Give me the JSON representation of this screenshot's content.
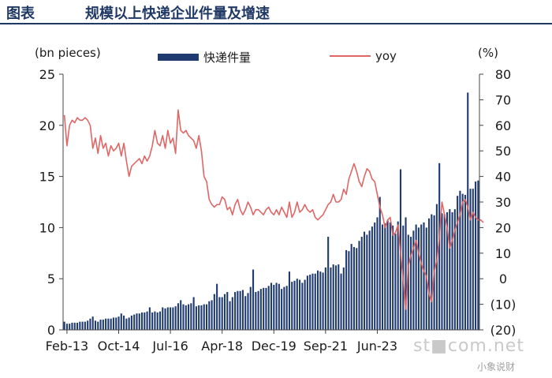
{
  "header": {
    "label": "图表",
    "title": "规模以上快递企业件量及增速"
  },
  "units": {
    "left": "(bn pieces)",
    "right": "(%)"
  },
  "legend": {
    "bar_label": "快递件量",
    "line_label": "yoy"
  },
  "watermark": {
    "main": "st■com.net",
    "sub": "小象说财"
  },
  "chart_data": {
    "type": "bar",
    "title": "",
    "xlabel": "",
    "x_tick_labels": [
      "Feb-13",
      "Oct-14",
      "Jul-16",
      "Apr-18",
      "Dec-19",
      "Sep-21",
      "Jun-23"
    ],
    "y_left": {
      "label": "(bn pieces)",
      "range": [
        0,
        25
      ],
      "ticks": [
        "0",
        "5",
        "10",
        "15",
        "20",
        "25"
      ]
    },
    "y_right": {
      "label": "(%)",
      "range": [
        -20,
        80
      ],
      "ticks": [
        "(20)",
        "(10)",
        "0",
        "10",
        "20",
        "30",
        "40",
        "50",
        "60",
        "70",
        "80"
      ]
    },
    "start_month": "2013-01",
    "colors": {
      "bar": "#1f3a6e",
      "line": "#e06666",
      "axis": "#444444"
    },
    "series": [
      {
        "name": "快递件量",
        "axis": "left",
        "type": "bar",
        "values": [
          0.8,
          0.6,
          0.6,
          0.7,
          0.7,
          0.7,
          0.8,
          0.8,
          0.8,
          0.9,
          1.1,
          1.3,
          0.9,
          0.8,
          1.0,
          1.0,
          1.1,
          1.1,
          1.1,
          1.2,
          1.2,
          1.3,
          1.6,
          1.4,
          1.1,
          1.2,
          1.4,
          1.5,
          1.6,
          1.6,
          1.7,
          1.7,
          1.8,
          2.2,
          1.7,
          1.8,
          1.7,
          1.8,
          2.2,
          2.1,
          2.2,
          2.2,
          2.2,
          2.3,
          2.6,
          2.9,
          2.5,
          2.4,
          2.5,
          2.6,
          3.2,
          2.3,
          2.4,
          2.4,
          2.5,
          2.5,
          2.8,
          2.9,
          3.5,
          4.5,
          3.2,
          3.2,
          3.5,
          3.7,
          2.8,
          3.2,
          3.7,
          3.8,
          3.8,
          3.9,
          3.3,
          3.6,
          4.2,
          5.9,
          3.7,
          3.8,
          4.0,
          4.1,
          4.1,
          4.3,
          4.6,
          4.4,
          4.6,
          4.5,
          4.0,
          4.2,
          4.3,
          5.7,
          4.7,
          4.8,
          5.0,
          4.9,
          4.6,
          4.9,
          5.3,
          5.4,
          5.5,
          5.5,
          5.8,
          5.7,
          5.6,
          6.1,
          9.1,
          6.1,
          6.4,
          6.3,
          6.4,
          5.5,
          6.1,
          7.8,
          7.7,
          8.4,
          8.1,
          8.0,
          8.7,
          9.1,
          9.6,
          9.3,
          9.7,
          10.1,
          10.5,
          11.0,
          13.0,
          10.3,
          10.4,
          10.7,
          10.5,
          10.2,
          9.4,
          10.6,
          15.7,
          10.2,
          11.0,
          9.3,
          9.1,
          9.7,
          10.3,
          10.0,
          10.3,
          10.5,
          10.0,
          10.9,
          11.3,
          11.2,
          12.3,
          16.3,
          11.4,
          11.3,
          11.5,
          11.8,
          11.5,
          11.8,
          13.1,
          13.6,
          13.3,
          13.2,
          23.2,
          13.8,
          13.8,
          14.5,
          14.6
        ]
      },
      {
        "name": "yoy",
        "axis": "right",
        "type": "line",
        "values": [
          64,
          52,
          60,
          62,
          61,
          63,
          62,
          62,
          63,
          62,
          60,
          51,
          55,
          49,
          56,
          51,
          53,
          48,
          52,
          50,
          51,
          53,
          48,
          53,
          46,
          40,
          44,
          45,
          46,
          47,
          45,
          48,
          46,
          48,
          52,
          58,
          53,
          52,
          56,
          51,
          58,
          53,
          55,
          49,
          66,
          58,
          57,
          58,
          56,
          55,
          54,
          51,
          56,
          50,
          40,
          38,
          31,
          29,
          28,
          29,
          29,
          32,
          31,
          27,
          28,
          25,
          29,
          31,
          27,
          25,
          27,
          30,
          28,
          25,
          27,
          27,
          26,
          25,
          27,
          28,
          26,
          25,
          27,
          25,
          28,
          26,
          24,
          30,
          24,
          26,
          30,
          26,
          27,
          29,
          27,
          26,
          27,
          24,
          23,
          24,
          25,
          27,
          29,
          30,
          33,
          30,
          30,
          31,
          35,
          33,
          39,
          42,
          45,
          42,
          38,
          36,
          40,
          43,
          42,
          39,
          38,
          33,
          28,
          25,
          20,
          23,
          24,
          17,
          18,
          21,
          10,
          0,
          -12,
          5,
          9,
          12,
          15,
          10,
          6,
          3,
          1,
          -6,
          -9,
          3,
          7,
          16,
          30,
          25,
          20,
          12,
          15,
          19,
          22,
          25,
          30,
          31,
          28,
          23,
          26,
          24,
          23,
          23,
          22
        ]
      }
    ],
    "grid": false,
    "legend_position": "top-center"
  }
}
